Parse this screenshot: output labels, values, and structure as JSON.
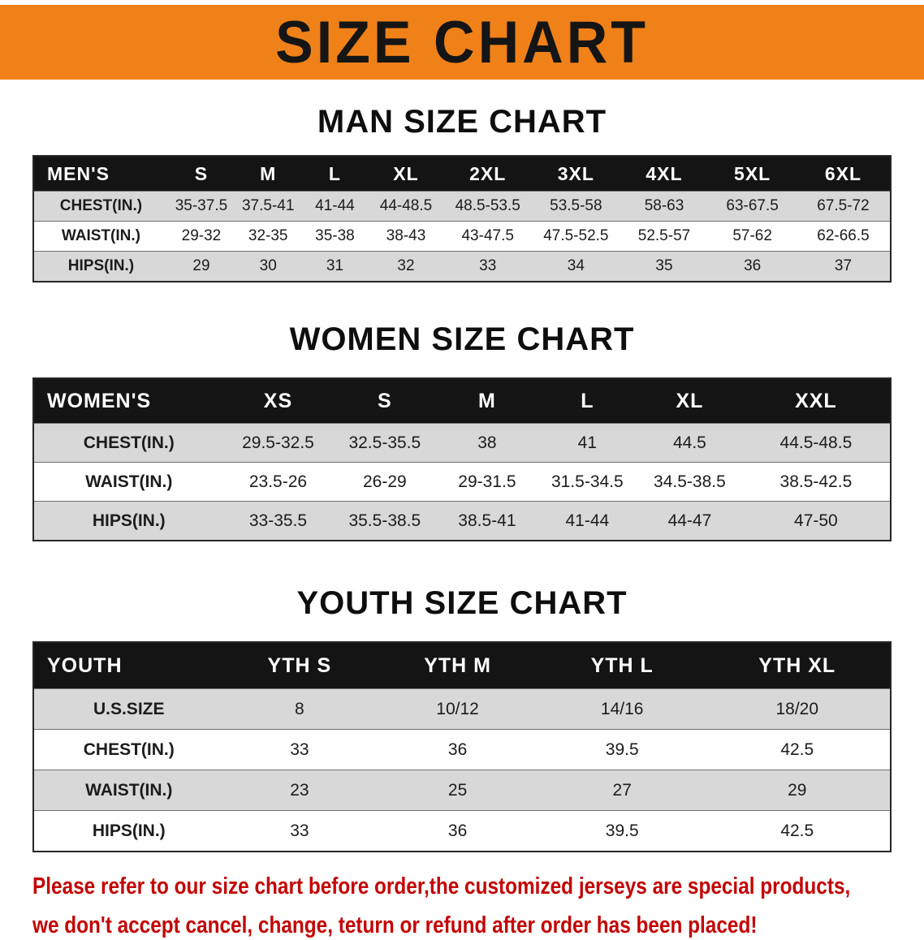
{
  "colors": {
    "banner_bg": "#F08119",
    "banner_text": "#151515",
    "table_header_bg": "#141414",
    "table_header_text": "#FFFFFF",
    "row_stripe": "#D8D8D8",
    "notice_text": "#C40303"
  },
  "banner": {
    "title": "SIZE CHART"
  },
  "sections": [
    {
      "heading": "MAN SIZE CHART",
      "table": {
        "header": [
          "MEN'S",
          "S",
          "M",
          "L",
          "XL",
          "2XL",
          "3XL",
          "4XL",
          "5XL",
          "6XL"
        ],
        "rows": [
          [
            "CHEST(IN.)",
            "35-37.5",
            "37.5-41",
            "41-44",
            "44-48.5",
            "48.5-53.5",
            "53.5-58",
            "58-63",
            "63-67.5",
            "67.5-72"
          ],
          [
            "WAIST(IN.)",
            "29-32",
            "32-35",
            "35-38",
            "38-43",
            "43-47.5",
            "47.5-52.5",
            "52.5-57",
            "57-62",
            "62-66.5"
          ],
          [
            "HIPS(IN.)",
            "29",
            "30",
            "31",
            "32",
            "33",
            "34",
            "35",
            "36",
            "37"
          ]
        ]
      }
    },
    {
      "heading": "WOMEN SIZE CHART",
      "table": {
        "header": [
          "WOMEN'S",
          "XS",
          "S",
          "M",
          "L",
          "XL",
          "XXL"
        ],
        "rows": [
          [
            "CHEST(IN.)",
            "29.5-32.5",
            "32.5-35.5",
            "38",
            "41",
            "44.5",
            "44.5-48.5"
          ],
          [
            "WAIST(IN.)",
            "23.5-26",
            "26-29",
            "29-31.5",
            "31.5-34.5",
            "34.5-38.5",
            "38.5-42.5"
          ],
          [
            "HIPS(IN.)",
            "33-35.5",
            "35.5-38.5",
            "38.5-41",
            "41-44",
            "44-47",
            "47-50"
          ]
        ]
      }
    },
    {
      "heading": "YOUTH SIZE CHART",
      "table": {
        "header": [
          "YOUTH",
          "YTH S",
          "YTH M",
          "YTH L",
          "YTH XL"
        ],
        "rows": [
          [
            "U.S.SIZE",
            "8",
            "10/12",
            "14/16",
            "18/20"
          ],
          [
            "CHEST(IN.)",
            "33",
            "36",
            "39.5",
            "42.5"
          ],
          [
            "WAIST(IN.)",
            "23",
            "25",
            "27",
            "29"
          ],
          [
            "HIPS(IN.)",
            "33",
            "36",
            "39.5",
            "42.5"
          ]
        ]
      }
    }
  ],
  "notice": {
    "lines": [
      "Please refer to our size chart before order,the customized jerseys are special products,",
      "we don't accept cancel, change, teturn or refund after order has been placed!"
    ]
  }
}
